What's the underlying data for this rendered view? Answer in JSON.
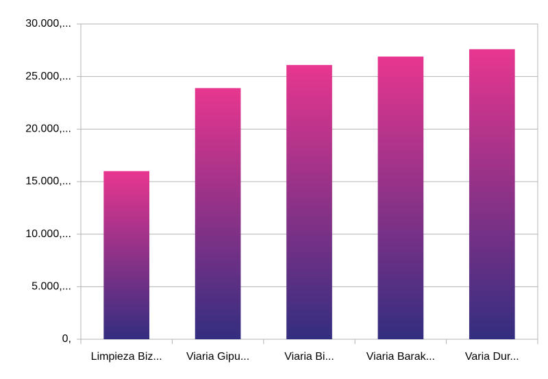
{
  "chart_data": {
    "type": "bar",
    "categories": [
      "Limpieza Biz...",
      "Viaria Gipu...",
      "Viaria Bi...",
      "Viaria Barak...",
      "Varia Dur..."
    ],
    "values": [
      16000,
      23900,
      26100,
      26900,
      27600
    ],
    "gradient": [
      "#e8368f",
      "#332e80"
    ],
    "ylim": [
      0,
      30000
    ],
    "yticks": [
      {
        "value": 0,
        "label": "0,"
      },
      {
        "value": 5000,
        "label": "5.000,..."
      },
      {
        "value": 10000,
        "label": "10.000,..."
      },
      {
        "value": 15000,
        "label": "15.000,..."
      },
      {
        "value": 20000,
        "label": "20.000,..."
      },
      {
        "value": 25000,
        "label": "25.000,..."
      },
      {
        "value": 30000,
        "label": "30.000,..."
      }
    ],
    "grid": true
  }
}
